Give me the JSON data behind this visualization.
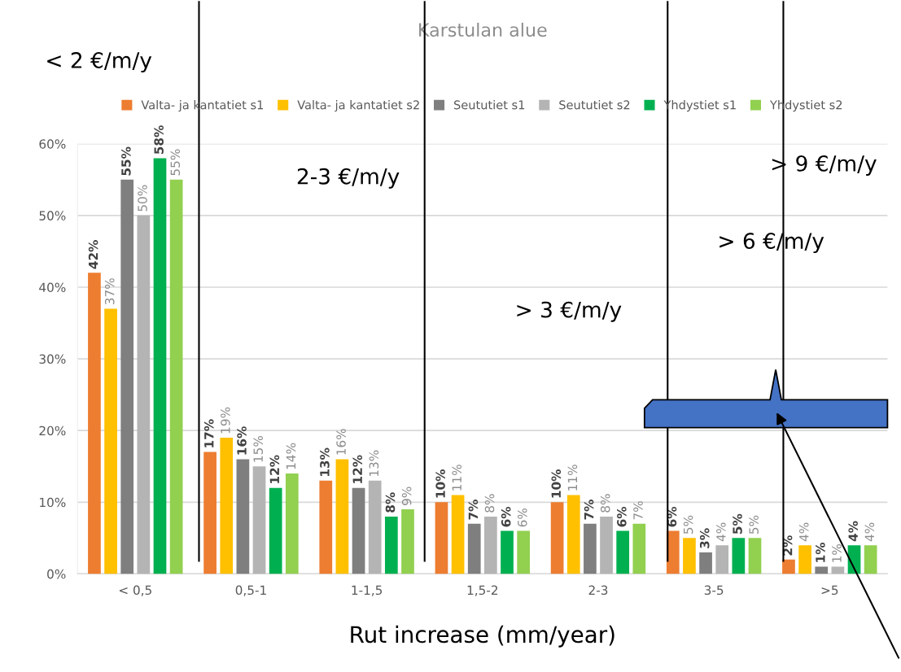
{
  "chart_data": {
    "type": "bar",
    "title": "Karstulan alue",
    "xlabel": "Rut increase (mm/year)",
    "categories": [
      "< 0,5",
      "0,5-1",
      "1-1,5",
      "1,5-2",
      "2-3",
      "3-5",
      ">5"
    ],
    "series": [
      {
        "name": "Valta- ja kantatiet s1",
        "color": "#ed7d31",
        "values": [
          42,
          17,
          13,
          10,
          10,
          6,
          2
        ]
      },
      {
        "name": "Valta- ja kantatiet s2",
        "color": "#ffc000",
        "values": [
          37,
          19,
          16,
          11,
          11,
          5,
          4
        ]
      },
      {
        "name": "Seututiet s1",
        "color": "#7f7f7f",
        "values": [
          55,
          16,
          12,
          7,
          7,
          3,
          1
        ]
      },
      {
        "name": "Seututiet s2",
        "color": "#b4b4b4",
        "values": [
          50,
          15,
          13,
          8,
          8,
          4,
          1
        ]
      },
      {
        "name": "Yhdystiet s1",
        "color": "#00b050",
        "values": [
          58,
          12,
          8,
          6,
          6,
          5,
          4
        ]
      },
      {
        "name": "Yhdystiet s2",
        "color": "#92d050",
        "values": [
          55,
          14,
          9,
          6,
          7,
          5,
          4
        ]
      }
    ],
    "ylim": [
      0,
      60
    ],
    "yticks": [
      {
        "value": 0,
        "label": "0%"
      },
      {
        "value": 10,
        "label": "10%"
      },
      {
        "value": 20,
        "label": "20%"
      },
      {
        "value": 30,
        "label": "30%"
      },
      {
        "value": 40,
        "label": "40%"
      },
      {
        "value": 50,
        "label": "50%"
      },
      {
        "value": 60,
        "label": "60%"
      }
    ],
    "value_labels": [
      [
        "42%",
        "17%",
        "13%",
        "10%",
        "10%",
        "6%",
        "2%"
      ],
      [
        "37%",
        "19%",
        "16%",
        "11%",
        "11%",
        "5%",
        "4%"
      ],
      [
        "55%",
        "16%",
        "12%",
        "7%",
        "7%",
        "3%",
        "1%"
      ],
      [
        "50%",
        "15%",
        "13%",
        "8%",
        "8%",
        "4%",
        "1%"
      ],
      [
        "58%",
        "12%",
        "8%",
        "6%",
        "6%",
        "5%",
        "4%"
      ],
      [
        "55%",
        "14%",
        "9%",
        "6%",
        "7%",
        "5%",
        "4%"
      ]
    ],
    "grid": "y",
    "legend": "top",
    "annotations": [
      "< 2 €/m/y",
      "2-3 €/m/y",
      "> 3 €/m/y",
      "> 6 €/m/y",
      "> 9 €/m/y"
    ]
  }
}
